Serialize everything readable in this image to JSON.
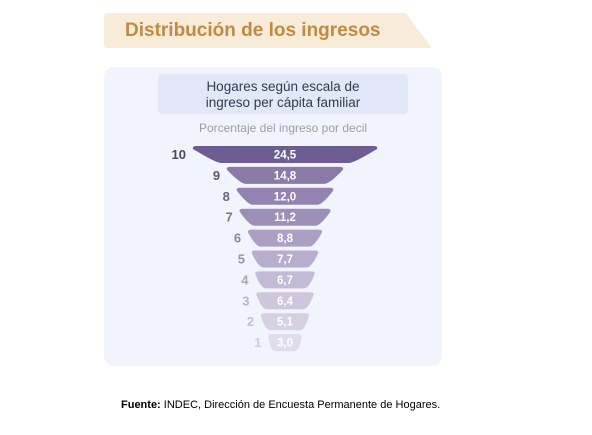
{
  "header": {
    "title": "Distribución de los ingresos"
  },
  "panel": {
    "subtitle_line1": "Hogares según escala de",
    "subtitle_line2": "ingreso per cápita familiar",
    "axis_note": "Porcentaje del ingreso por decil"
  },
  "chart_data": {
    "type": "bar",
    "title": "Hogares según escala de ingreso per cápita familiar",
    "ylabel": "Porcentaje del ingreso por decil",
    "categories": [
      "10",
      "9",
      "8",
      "7",
      "6",
      "5",
      "4",
      "3",
      "2",
      "1"
    ],
    "values": [
      24.5,
      14.8,
      12.0,
      11.2,
      8.8,
      7.7,
      6.7,
      6.4,
      5.1,
      3.0
    ],
    "value_labels": [
      "24,5",
      "14,8",
      "12,0",
      "11,2",
      "8,8",
      "7,7",
      "6,7",
      "6,4",
      "5,1",
      "3,0"
    ],
    "bar_colors": [
      "#6e5d92",
      "#8a7aa8",
      "#9383b0",
      "#9d8fb8",
      "#ab9fc3",
      "#b7adcc",
      "#c3bbd5",
      "#cdc6dc",
      "#d6d0e3",
      "#e0dcea"
    ],
    "label_colors": [
      "#4a4560",
      "#5a5570",
      "#6a6580",
      "#7a7590",
      "#8a85a0",
      "#9a95ad",
      "#aaa6ba",
      "#b7b3c5",
      "#c3c0cf",
      "#d0cdd9"
    ]
  },
  "footer": {
    "source_label": "Fuente:",
    "source_text": " INDEC, Dirección de Encuesta Permanente de Hogares."
  }
}
